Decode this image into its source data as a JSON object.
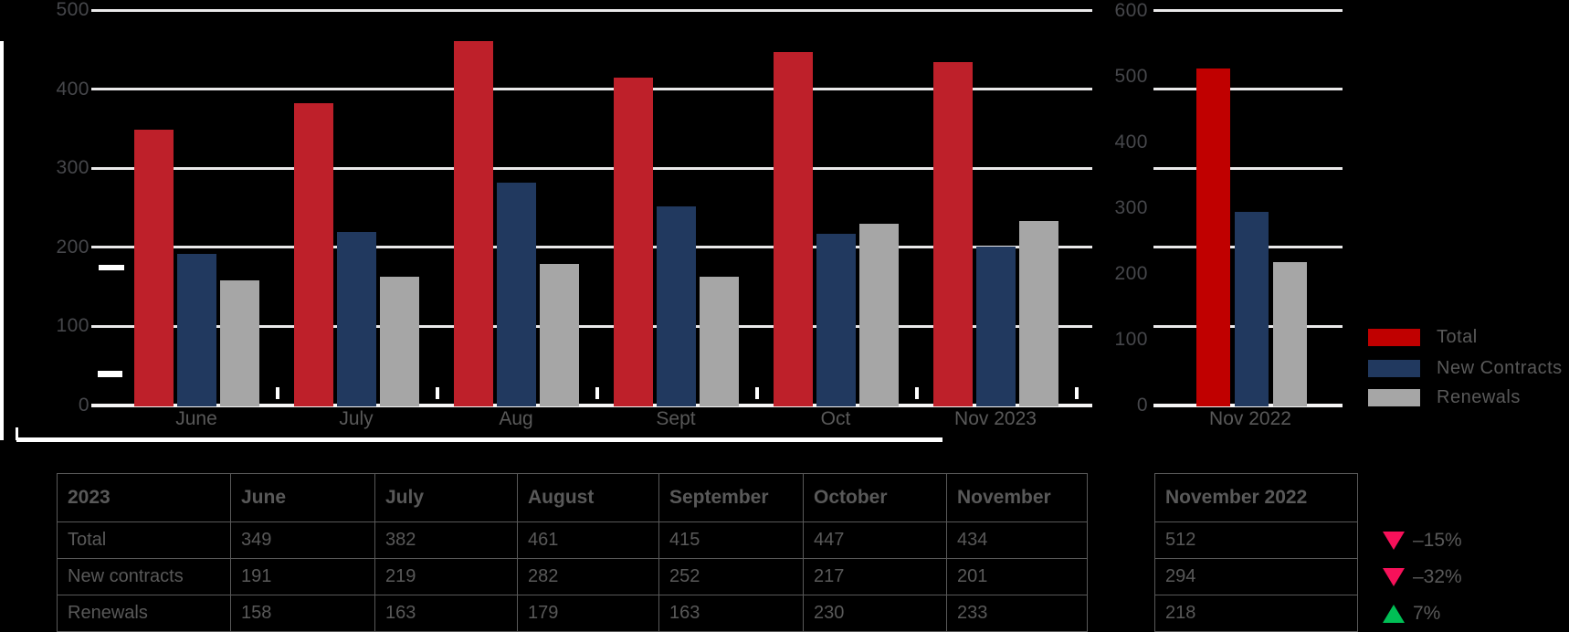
{
  "colors": {
    "total_main": "#be202a",
    "total_2022": "#c00000",
    "new_contracts": "#21395f",
    "renewals": "#a6a6a6",
    "gridline": "#eae9ea",
    "axis_text": "#46474b",
    "label_text": "#595959",
    "change_down": "#f7115a",
    "change_up": "#00bf55"
  },
  "chart_data": [
    {
      "type": "bar",
      "title": "",
      "categories": [
        "June",
        "July",
        "Aug",
        "Sept",
        "Oct",
        "Nov 2023"
      ],
      "series": [
        {
          "name": "Total",
          "color": "#be202a",
          "values": [
            349,
            382,
            461,
            415,
            447,
            434
          ]
        },
        {
          "name": "New Contracts",
          "color": "#21395f",
          "values": [
            191,
            219,
            282,
            252,
            217,
            201
          ]
        },
        {
          "name": "Renewals",
          "color": "#a6a6a6",
          "values": [
            158,
            163,
            179,
            163,
            230,
            233
          ]
        }
      ],
      "ylim": [
        0,
        500
      ],
      "yticks": [
        0,
        100,
        200,
        300,
        400,
        500
      ],
      "grid": true,
      "legend_position": "right"
    },
    {
      "type": "bar",
      "title": "",
      "categories": [
        "Nov 2022"
      ],
      "series": [
        {
          "name": "Total",
          "color": "#c00000",
          "values": [
            512
          ]
        },
        {
          "name": "New Contracts",
          "color": "#21395f",
          "values": [
            294
          ]
        },
        {
          "name": "Renewals",
          "color": "#a6a6a6",
          "values": [
            218
          ]
        }
      ],
      "ylim": [
        0,
        600
      ],
      "yticks": [
        0,
        100,
        200,
        300,
        400,
        500,
        600
      ],
      "grid": true
    }
  ],
  "legend": {
    "items": [
      {
        "label": "Total",
        "color": "#c00000"
      },
      {
        "label": "New Contracts",
        "color": "#21395f"
      },
      {
        "label": "Renewals",
        "color": "#a6a6a6"
      }
    ]
  },
  "table_2023": {
    "headers": [
      "2023",
      "June",
      "July",
      "August",
      "September",
      "October",
      "November"
    ],
    "rows": [
      [
        "Total",
        "349",
        "382",
        "461",
        "415",
        "447",
        "434"
      ],
      [
        "New contracts",
        "191",
        "219",
        "282",
        "252",
        "217",
        "201"
      ],
      [
        "Renewals",
        "158",
        "163",
        "179",
        "163",
        "230",
        "233"
      ]
    ]
  },
  "table_2022": {
    "header": "November 2022",
    "rows": [
      [
        "512"
      ],
      [
        "294"
      ],
      [
        "218"
      ]
    ]
  },
  "changes": [
    {
      "direction": "down",
      "label": "–15%"
    },
    {
      "direction": "down",
      "label": "–32%"
    },
    {
      "direction": "up",
      "label": "7%"
    }
  ]
}
